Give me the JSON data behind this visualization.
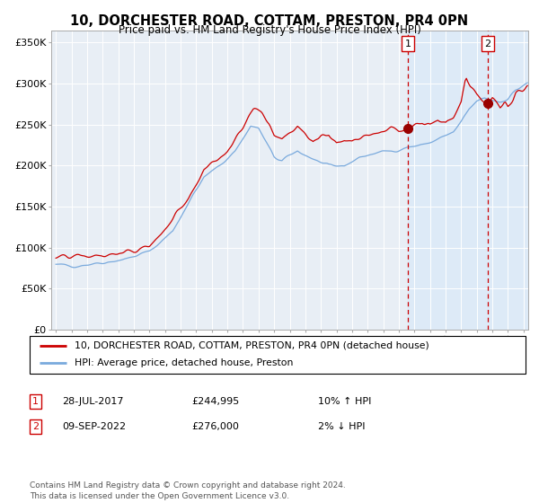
{
  "title": "10, DORCHESTER ROAD, COTTAM, PRESTON, PR4 0PN",
  "subtitle": "Price paid vs. HM Land Registry's House Price Index (HPI)",
  "title_fontsize": 10.5,
  "subtitle_fontsize": 8.5,
  "background_color": "#ffffff",
  "plot_bg_color": "#e8eef5",
  "grid_color": "#ffffff",
  "ylabel_ticks": [
    "£0",
    "£50K",
    "£100K",
    "£150K",
    "£200K",
    "£250K",
    "£300K",
    "£350K"
  ],
  "ytick_values": [
    0,
    50000,
    100000,
    150000,
    200000,
    250000,
    300000,
    350000
  ],
  "ylim": [
    0,
    365000
  ],
  "sale1_date": "28-JUL-2017",
  "sale1_price": 244995,
  "sale1_label": "1",
  "sale1_hpi_diff": "10% ↑ HPI",
  "sale2_date": "09-SEP-2022",
  "sale2_price": 276000,
  "sale2_label": "2",
  "sale2_hpi_diff": "2% ↓ HPI",
  "legend_line1": "10, DORCHESTER ROAD, COTTAM, PRESTON, PR4 0PN (detached house)",
  "legend_line2": "HPI: Average price, detached house, Preston",
  "line_red_color": "#cc0000",
  "line_blue_color": "#7aaadd",
  "shade_color": "#ddeaf7",
  "footer_text": "Contains HM Land Registry data © Crown copyright and database right 2024.\nThis data is licensed under the Open Government Licence v3.0.",
  "sale1_x": 2017.57,
  "sale2_x": 2022.69,
  "annotation_box_color": "#cc0000",
  "marker_color": "#990000"
}
